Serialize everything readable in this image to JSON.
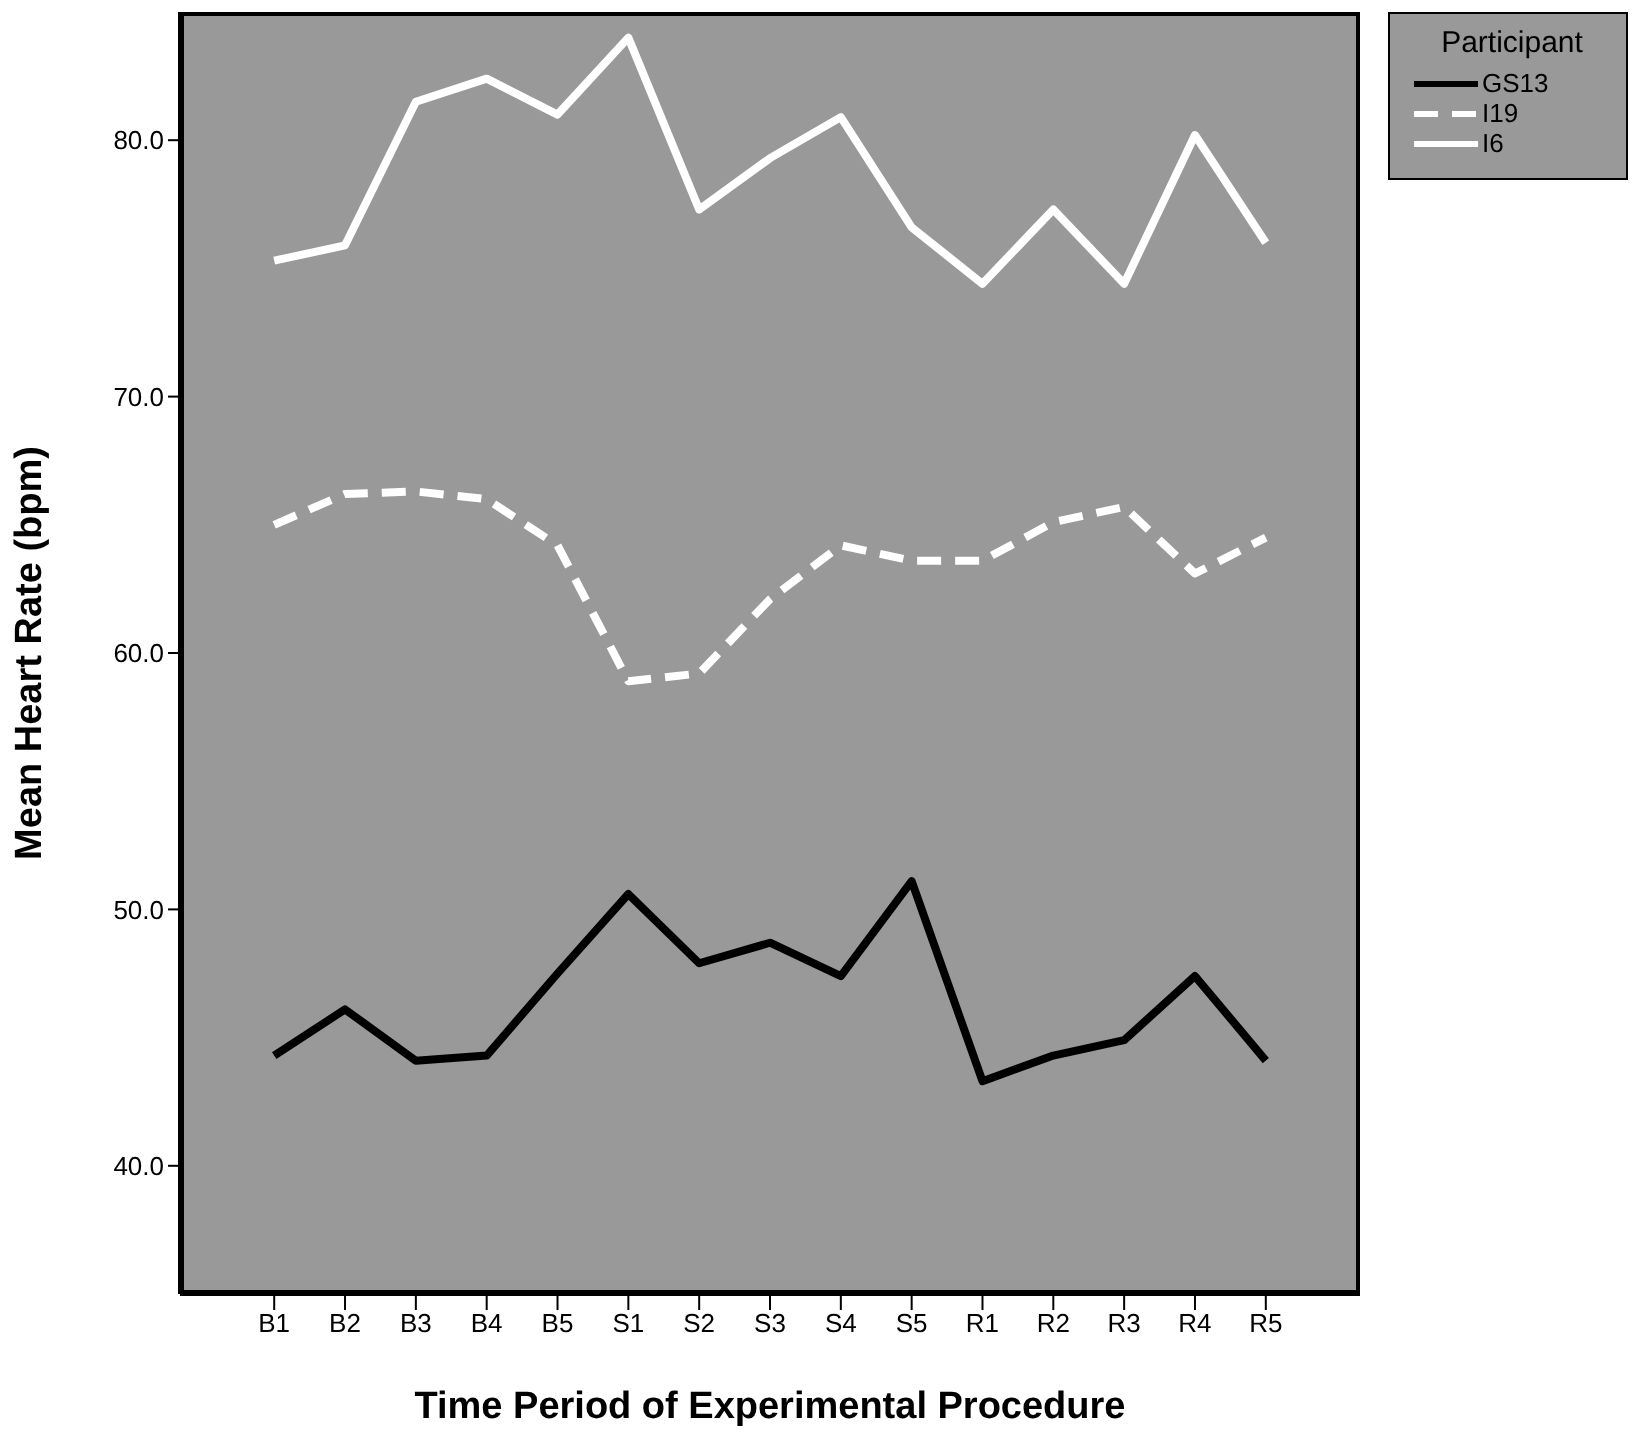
{
  "chart_data": {
    "type": "line",
    "xlabel": "Time Period of Experimental Procedure",
    "ylabel": "Mean Heart Rate (bpm)",
    "legend_title": "Participant",
    "legend": "top right",
    "grid": false,
    "marker": "none",
    "categories": [
      "B1",
      "B2",
      "B3",
      "B4",
      "B5",
      "S1",
      "S2",
      "S3",
      "S4",
      "S5",
      "R1",
      "R2",
      "R3",
      "R4",
      "R5"
    ],
    "ylim": [
      35,
      85
    ],
    "yticks": [
      {
        "value": 40,
        "label": "40.0"
      },
      {
        "value": 50,
        "label": "50.0"
      },
      {
        "value": 60,
        "label": "60.0"
      },
      {
        "value": 70,
        "label": "70.0"
      },
      {
        "value": 80,
        "label": "80.0"
      }
    ],
    "series": [
      {
        "name": "GS13",
        "color": "#000000",
        "line_style": "solid",
        "values": [
          44.3,
          46.1,
          44.1,
          44.3,
          47.5,
          50.6,
          47.9,
          48.7,
          47.4,
          51.1,
          43.3,
          44.3,
          44.9,
          47.4,
          44.1
        ]
      },
      {
        "name": "I19",
        "color": "#ffffff",
        "line_style": "dashed",
        "values": [
          65.0,
          66.2,
          66.3,
          66.0,
          64.2,
          58.9,
          59.2,
          62.1,
          64.2,
          63.6,
          63.6,
          65.1,
          65.7,
          63.1,
          64.5
        ]
      },
      {
        "name": "I6",
        "color": "#ffffff",
        "line_style": "solid",
        "values": [
          75.3,
          75.9,
          81.5,
          82.4,
          81.0,
          84.0,
          77.3,
          79.3,
          80.9,
          76.6,
          74.4,
          77.3,
          74.4,
          80.2,
          76.0
        ]
      }
    ]
  }
}
